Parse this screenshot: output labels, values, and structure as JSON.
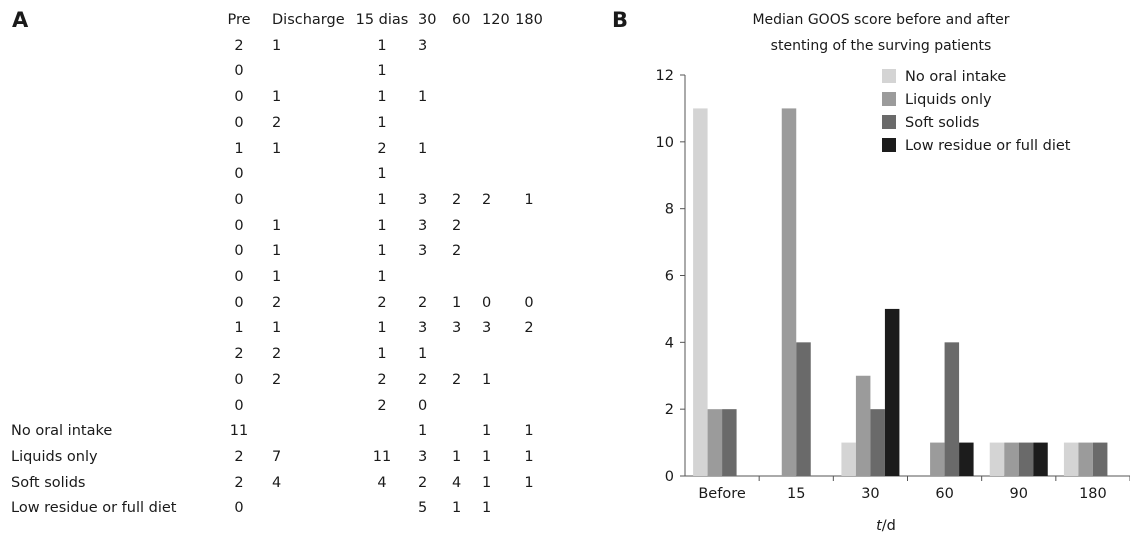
{
  "panel_a": {
    "letter": "A",
    "headers": [
      "Pre",
      "Discharge",
      "15 dias",
      "30",
      "60",
      "120",
      "180"
    ],
    "rows": [
      {
        "label": "",
        "cells": [
          "2",
          "1",
          "1",
          "3",
          "",
          "",
          ""
        ]
      },
      {
        "label": "",
        "cells": [
          "0",
          "",
          "1",
          "",
          "",
          "",
          ""
        ]
      },
      {
        "label": "",
        "cells": [
          "0",
          "1",
          "1",
          "1",
          "",
          "",
          ""
        ]
      },
      {
        "label": "",
        "cells": [
          "0",
          "2",
          "1",
          "",
          "",
          "",
          ""
        ]
      },
      {
        "label": "",
        "cells": [
          "1",
          "1",
          "2",
          "1",
          "",
          "",
          ""
        ]
      },
      {
        "label": "",
        "cells": [
          "0",
          "",
          "1",
          "",
          "",
          "",
          ""
        ]
      },
      {
        "label": "",
        "cells": [
          "0",
          "",
          "1",
          "3",
          "2",
          "2",
          "1"
        ]
      },
      {
        "label": "",
        "cells": [
          "0",
          "1",
          "1",
          "3",
          "2",
          "",
          ""
        ]
      },
      {
        "label": "",
        "cells": [
          "0",
          "1",
          "1",
          "3",
          "2",
          "",
          ""
        ]
      },
      {
        "label": "",
        "cells": [
          "0",
          "1",
          "1",
          "",
          "",
          "",
          ""
        ]
      },
      {
        "label": "",
        "cells": [
          "0",
          "2",
          "2",
          "2",
          "1",
          "0",
          "0"
        ]
      },
      {
        "label": "",
        "cells": [
          "1",
          "1",
          "1",
          "3",
          "3",
          "3",
          "2"
        ]
      },
      {
        "label": "",
        "cells": [
          "2",
          "2",
          "1",
          "1",
          "",
          "",
          ""
        ]
      },
      {
        "label": "",
        "cells": [
          "0",
          "2",
          "2",
          "2",
          "2",
          "1",
          ""
        ]
      },
      {
        "label": "",
        "cells": [
          "0",
          "",
          "2",
          "0",
          "",
          "",
          ""
        ]
      },
      {
        "label": "No oral intake",
        "cells": [
          "11",
          "",
          "",
          "1",
          "",
          "1",
          "1"
        ]
      },
      {
        "label": "Liquids only",
        "cells": [
          "2",
          "7",
          "11",
          "3",
          "1",
          "1",
          "1"
        ]
      },
      {
        "label": "Soft solids",
        "cells": [
          "2",
          "4",
          "4",
          "2",
          "4",
          "1",
          "1"
        ]
      },
      {
        "label": "Low residue or full diet",
        "cells": [
          "0",
          "",
          "",
          "5",
          "1",
          "1",
          ""
        ]
      }
    ]
  },
  "panel_b": {
    "letter": "B",
    "x_unit_italic": "t",
    "x_unit_rest": "/d"
  },
  "chart_data": {
    "type": "bar",
    "title": "Median GOOS score before and after stenting of the surving patients",
    "title_lines": [
      "Median GOOS score before and after",
      "stenting of the surving patients"
    ],
    "xlabel": "t/d",
    "ylabel": "",
    "categories": [
      "Before",
      "15",
      "30",
      "60",
      "90",
      "180"
    ],
    "ylim": [
      0,
      12
    ],
    "yticks": [
      0,
      2,
      4,
      6,
      8,
      10,
      12
    ],
    "grid": false,
    "legend_position": "top-right",
    "series": [
      {
        "name": "No oral intake",
        "color": "#d4d4d4",
        "values": [
          11,
          0,
          1,
          0,
          1,
          1
        ]
      },
      {
        "name": "Liquids only",
        "color": "#9b9b9b",
        "values": [
          2,
          11,
          3,
          1,
          1,
          1
        ]
      },
      {
        "name": "Soft solids",
        "color": "#6a6a6a",
        "values": [
          2,
          4,
          2,
          4,
          1,
          1
        ]
      },
      {
        "name": "Low residue or full diet",
        "color": "#1c1c1c",
        "values": [
          0,
          0,
          5,
          1,
          1,
          0
        ]
      }
    ]
  }
}
